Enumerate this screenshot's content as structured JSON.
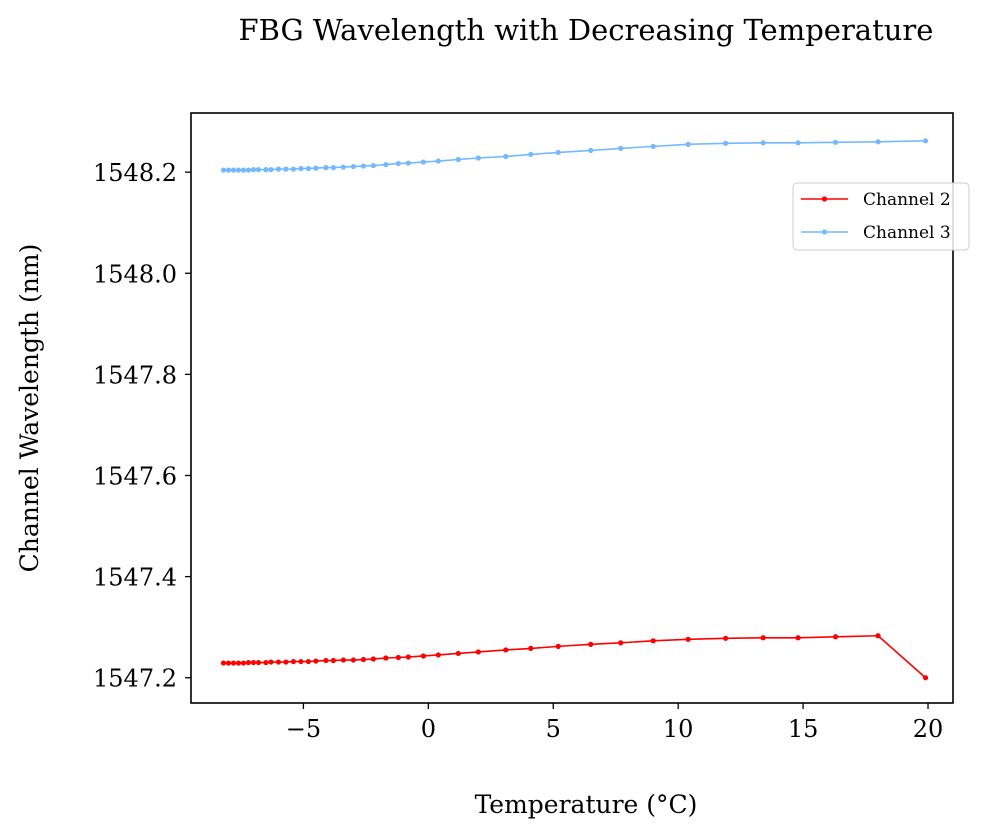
{
  "chart_data": {
    "type": "line",
    "title": "FBG Wavelength with Decreasing Temperature",
    "xlabel": "Temperature (°C)",
    "ylabel": "Channel Wavelength (nm)",
    "xlim": [
      -9.5,
      21.0
    ],
    "ylim": [
      1547.15,
      1548.317
    ],
    "xticks": [
      -5,
      0,
      5,
      10,
      15,
      20
    ],
    "xtick_labels": [
      "−5",
      "0",
      "5",
      "10",
      "15",
      "20"
    ],
    "yticks": [
      1547.2,
      1547.4,
      1547.6,
      1547.8,
      1548.0,
      1548.2
    ],
    "ytick_labels": [
      "1547.2",
      "1547.4",
      "1547.6",
      "1547.8",
      "1548.0",
      "1548.2"
    ],
    "grid": false,
    "legend_position": "upper-right",
    "series": [
      {
        "name": "Channel 2",
        "color": "#ff0000",
        "x": [
          19.9,
          18.0,
          16.3,
          14.8,
          13.4,
          11.9,
          10.4,
          9.0,
          7.7,
          6.5,
          5.2,
          4.1,
          3.1,
          2.0,
          1.2,
          0.4,
          -0.2,
          -0.8,
          -1.2,
          -1.7,
          -2.2,
          -2.6,
          -3.0,
          -3.4,
          -3.8,
          -4.1,
          -4.5,
          -4.8,
          -5.1,
          -5.4,
          -5.7,
          -6.0,
          -6.3,
          -6.5,
          -6.8,
          -7.0,
          -7.2,
          -7.4,
          -7.6,
          -7.8,
          -8.0,
          -8.2
        ],
        "y": [
          1547.2,
          1547.283,
          1547.281,
          1547.279,
          1547.279,
          1547.278,
          1547.276,
          1547.273,
          1547.269,
          1547.266,
          1547.262,
          1547.258,
          1547.255,
          1547.251,
          1547.248,
          1547.245,
          1547.243,
          1547.241,
          1547.24,
          1547.239,
          1547.237,
          1547.236,
          1547.235,
          1547.235,
          1547.234,
          1547.234,
          1547.233,
          1547.232,
          1547.232,
          1547.232,
          1547.231,
          1547.231,
          1547.231,
          1547.23,
          1547.23,
          1547.23,
          1547.23,
          1547.229,
          1547.229,
          1547.229,
          1547.229,
          1547.229
        ]
      },
      {
        "name": "Channel 3",
        "color": "#74b9ff",
        "x": [
          19.9,
          18.0,
          16.3,
          14.8,
          13.4,
          11.9,
          10.4,
          9.0,
          7.7,
          6.5,
          5.2,
          4.1,
          3.1,
          2.0,
          1.2,
          0.4,
          -0.2,
          -0.8,
          -1.2,
          -1.7,
          -2.2,
          -2.6,
          -3.0,
          -3.4,
          -3.8,
          -4.1,
          -4.5,
          -4.8,
          -5.1,
          -5.4,
          -5.7,
          -6.0,
          -6.3,
          -6.5,
          -6.8,
          -7.0,
          -7.2,
          -7.4,
          -7.6,
          -7.8,
          -8.0,
          -8.2
        ],
        "y": [
          1548.262,
          1548.26,
          1548.259,
          1548.258,
          1548.258,
          1548.257,
          1548.255,
          1548.251,
          1548.247,
          1548.243,
          1548.239,
          1548.235,
          1548.231,
          1548.228,
          1548.225,
          1548.222,
          1548.22,
          1548.218,
          1548.217,
          1548.215,
          1548.213,
          1548.212,
          1548.211,
          1548.21,
          1548.209,
          1548.209,
          1548.208,
          1548.207,
          1548.207,
          1548.206,
          1548.206,
          1548.206,
          1548.205,
          1548.205,
          1548.205,
          1548.205,
          1548.204,
          1548.204,
          1548.204,
          1548.204,
          1548.204,
          1548.204
        ]
      }
    ]
  }
}
